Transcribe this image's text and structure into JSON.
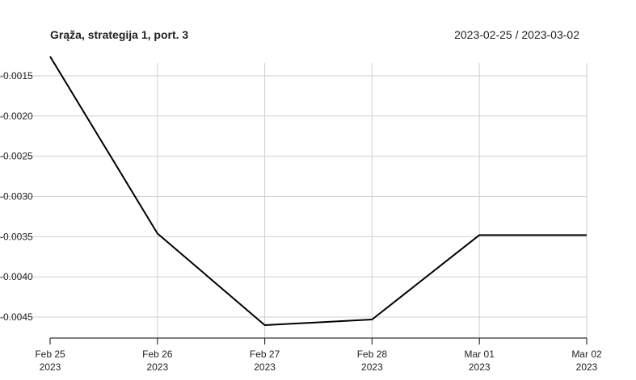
{
  "chart_data": {
    "type": "line",
    "title": "Grąža, strategija 1, port. 3",
    "date_range": "2023-02-25 / 2023-03-02",
    "xlabel": "",
    "ylabel": "",
    "x": [
      "2023-02-25",
      "2023-02-26",
      "2023-02-27",
      "2023-02-28",
      "2023-03-01",
      "2023-03-02"
    ],
    "x_tick_labels": [
      {
        "line1": "Feb 25",
        "line2": "2023"
      },
      {
        "line1": "Feb 26",
        "line2": "2023"
      },
      {
        "line1": "Feb 27",
        "line2": "2023"
      },
      {
        "line1": "Feb 28",
        "line2": "2023"
      },
      {
        "line1": "Mar 01",
        "line2": "2023"
      },
      {
        "line1": "Mar 02",
        "line2": "2023"
      }
    ],
    "y_ticks": [
      -0.0015,
      -0.002,
      -0.0025,
      -0.003,
      -0.0035,
      -0.004,
      -0.0045
    ],
    "y_tick_labels": [
      "-0.0015",
      "-0.0020",
      "-0.0025",
      "-0.0030",
      "-0.0035",
      "-0.0040",
      "-0.0045"
    ],
    "ylim": [
      -0.0046,
      -0.00126
    ],
    "grid": true,
    "series": [
      {
        "color": "#000000",
        "values": [
          -0.00126,
          -0.00346,
          -0.0046,
          -0.00453,
          -0.00348,
          -0.00348
        ]
      }
    ]
  }
}
